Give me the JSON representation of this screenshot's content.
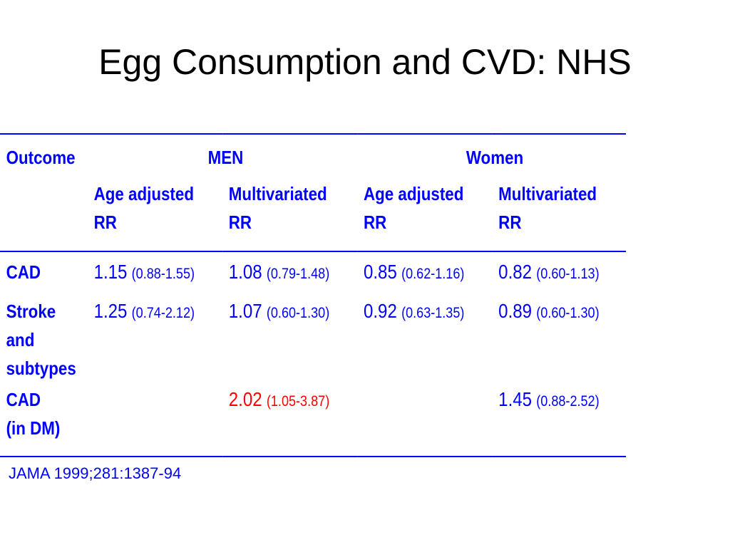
{
  "title": "Egg Consumption and CVD: NHS",
  "colors": {
    "text": "#0000ff",
    "highlight": "#ff0000",
    "title": "#000000",
    "rule": "#0000ff"
  },
  "table": {
    "header": {
      "outcome": "Outcome",
      "men": "MEN",
      "women": "Women",
      "sub": [
        {
          "line1": "Age adjusted",
          "line2": "RR"
        },
        {
          "line1": "Multivariated",
          "line2": "RR"
        },
        {
          "line1": "Age adjusted",
          "line2": "RR"
        },
        {
          "line1": "Multivariated",
          "line2": "RR"
        }
      ]
    },
    "rows": [
      {
        "label": [
          "CAD"
        ],
        "cells": [
          {
            "value": "1.15",
            "ci": "(0.88-1.55)"
          },
          {
            "value": "1.08",
            "ci": "(0.79-1.48)"
          },
          {
            "value": "0.85",
            "ci": "(0.62-1.16)"
          },
          {
            "value": "0.82",
            "ci": "(0.60-1.13)"
          }
        ]
      },
      {
        "label": [
          "Stroke",
          "and",
          "subtypes"
        ],
        "cells": [
          {
            "value": "1.25",
            "ci": "(0.74-2.12)"
          },
          {
            "value": "1.07",
            "ci": "(0.60-1.30)"
          },
          {
            "value": "0.92",
            "ci": "(0.63-1.35)"
          },
          {
            "value": "0.89",
            "ci": "(0.60-1.30)"
          }
        ]
      },
      {
        "label": [
          "CAD",
          "(in DM)"
        ],
        "cells": [
          {
            "value": "",
            "ci": ""
          },
          {
            "value": "2.02",
            "ci": "(1.05-3.87)",
            "highlight": true
          },
          {
            "value": "",
            "ci": ""
          },
          {
            "value": "1.45",
            "ci": "(0.88-2.52)"
          }
        ]
      }
    ]
  },
  "citation": "JAMA 1999;281:1387-94"
}
